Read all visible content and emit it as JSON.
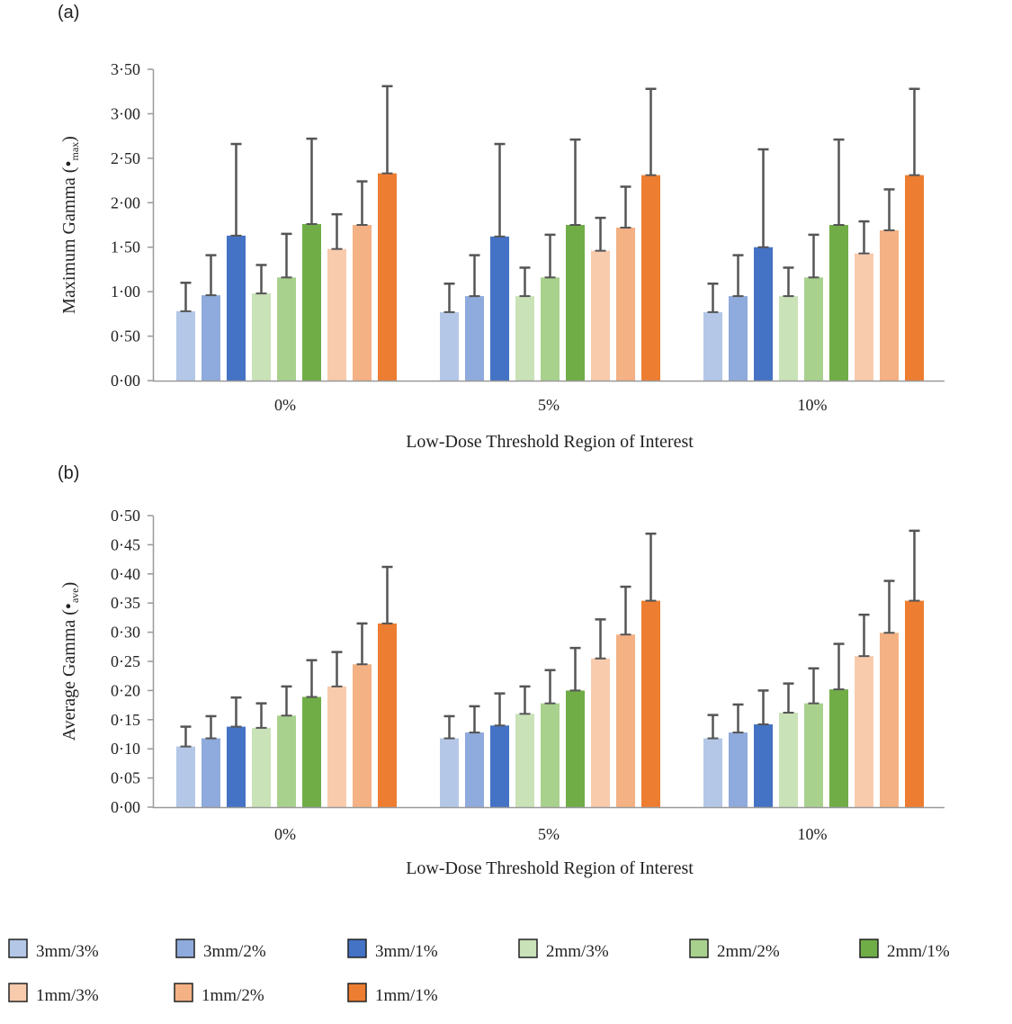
{
  "legend": [
    {
      "label": "3mm/3%",
      "color": "#b4c7e7"
    },
    {
      "label": "3mm/2%",
      "color": "#8faadc"
    },
    {
      "label": "3mm/1%",
      "color": "#4472c4"
    },
    {
      "label": "2mm/3%",
      "color": "#c9e2b8"
    },
    {
      "label": "2mm/2%",
      "color": "#a9d18e"
    },
    {
      "label": "2mm/1%",
      "color": "#70ad47"
    },
    {
      "label": "1mm/3%",
      "color": "#f8cbad"
    },
    {
      "label": "1mm/2%",
      "color": "#f4b183"
    },
    {
      "label": "1mm/1%",
      "color": "#ed7d31"
    }
  ],
  "error_bar_color": "#555555",
  "chart_data": [
    {
      "panel_label": "(a)",
      "type": "bar",
      "title": "",
      "ylabel_main": "Maximum Gamma (",
      "ylabel_symbol": "•",
      "ylabel_sub": "max",
      "ylabel_close": ")",
      "xlabel": "Low-Dose Threshold Region of Interest",
      "categories": [
        "0%",
        "5%",
        "10%"
      ],
      "ylim": [
        0,
        3.5
      ],
      "yticks": [
        "0·00",
        "0·50",
        "1·00",
        "1·50",
        "2·00",
        "2·50",
        "3·00",
        "3·50"
      ],
      "series": [
        {
          "name": "3mm/3%",
          "values": [
            0.78,
            0.77,
            0.77
          ],
          "errors": [
            0.32,
            0.32,
            0.32
          ]
        },
        {
          "name": "3mm/2%",
          "values": [
            0.96,
            0.95,
            0.95
          ],
          "errors": [
            0.45,
            0.46,
            0.46
          ]
        },
        {
          "name": "3mm/1%",
          "values": [
            1.63,
            1.62,
            1.5
          ],
          "errors": [
            1.03,
            1.04,
            1.1
          ]
        },
        {
          "name": "2mm/3%",
          "values": [
            0.98,
            0.95,
            0.95
          ],
          "errors": [
            0.32,
            0.32,
            0.32
          ]
        },
        {
          "name": "2mm/2%",
          "values": [
            1.16,
            1.16,
            1.16
          ],
          "errors": [
            0.49,
            0.48,
            0.48
          ]
        },
        {
          "name": "2mm/1%",
          "values": [
            1.76,
            1.75,
            1.75
          ],
          "errors": [
            0.96,
            0.96,
            0.96
          ]
        },
        {
          "name": "1mm/3%",
          "values": [
            1.48,
            1.46,
            1.43
          ],
          "errors": [
            0.39,
            0.37,
            0.36
          ]
        },
        {
          "name": "1mm/2%",
          "values": [
            1.75,
            1.72,
            1.69
          ],
          "errors": [
            0.49,
            0.46,
            0.46
          ]
        },
        {
          "name": "1mm/1%",
          "values": [
            2.33,
            2.31,
            2.31
          ],
          "errors": [
            0.98,
            0.97,
            0.97
          ]
        }
      ]
    },
    {
      "panel_label": "(b)",
      "type": "bar",
      "title": "",
      "ylabel_main": "Average Gamma (",
      "ylabel_symbol": "•",
      "ylabel_sub": "ave",
      "ylabel_close": ")",
      "xlabel": "Low-Dose Threshold Region of Interest",
      "categories": [
        "0%",
        "5%",
        "10%"
      ],
      "ylim": [
        0,
        0.5
      ],
      "yticks": [
        "0·00",
        "0·05",
        "0·10",
        "0·15",
        "0·20",
        "0·25",
        "0·30",
        "0·35",
        "0·40",
        "0·45",
        "0·50"
      ],
      "series": [
        {
          "name": "3mm/3%",
          "values": [
            0.104,
            0.118,
            0.118
          ],
          "errors": [
            0.034,
            0.038,
            0.04
          ]
        },
        {
          "name": "3mm/2%",
          "values": [
            0.118,
            0.128,
            0.128
          ],
          "errors": [
            0.038,
            0.045,
            0.048
          ]
        },
        {
          "name": "3mm/1%",
          "values": [
            0.138,
            0.14,
            0.142
          ],
          "errors": [
            0.05,
            0.055,
            0.058
          ]
        },
        {
          "name": "2mm/3%",
          "values": [
            0.136,
            0.16,
            0.162
          ],
          "errors": [
            0.042,
            0.047,
            0.05
          ]
        },
        {
          "name": "2mm/2%",
          "values": [
            0.157,
            0.178,
            0.178
          ],
          "errors": [
            0.05,
            0.057,
            0.06
          ]
        },
        {
          "name": "2mm/1%",
          "values": [
            0.189,
            0.2,
            0.202
          ],
          "errors": [
            0.063,
            0.073,
            0.078
          ]
        },
        {
          "name": "1mm/3%",
          "values": [
            0.207,
            0.255,
            0.259
          ],
          "errors": [
            0.059,
            0.067,
            0.071
          ]
        },
        {
          "name": "1mm/2%",
          "values": [
            0.245,
            0.296,
            0.299
          ],
          "errors": [
            0.07,
            0.082,
            0.089
          ]
        },
        {
          "name": "1mm/1%",
          "values": [
            0.315,
            0.354,
            0.354
          ],
          "errors": [
            0.097,
            0.115,
            0.12
          ]
        }
      ]
    }
  ]
}
